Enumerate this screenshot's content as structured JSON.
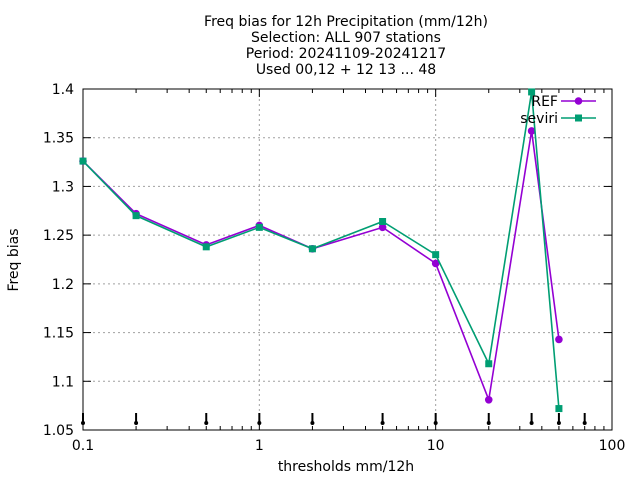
{
  "chart_data": {
    "type": "line",
    "title_lines": [
      "Freq bias  for 12h Precipitation (mm/12h)",
      "Selection: ALL    907 stations",
      "Period: 20241109-20241217",
      "Used 00,12 + 12 13 ... 48"
    ],
    "xlabel": "thresholds mm/12h",
    "ylabel": "Freq bias",
    "x_scale": "log",
    "xlim": [
      0.1,
      100
    ],
    "ylim": [
      1.05,
      1.4
    ],
    "x_ticks": [
      0.1,
      1,
      10,
      100
    ],
    "x_tick_labels": [
      "0.1",
      "1",
      "10",
      "100"
    ],
    "y_ticks": [
      1.05,
      1.1,
      1.15,
      1.2,
      1.25,
      1.3,
      1.35,
      1.4
    ],
    "y_tick_labels": [
      "1.05",
      "1.1",
      "1.15",
      "1.2",
      "1.25",
      "1.3",
      "1.35",
      "1.4"
    ],
    "grid": true,
    "legend_position": "top-right",
    "x": [
      0.1,
      0.2,
      0.5,
      1,
      2,
      5,
      10,
      20,
      35,
      50
    ],
    "series": [
      {
        "name": "REF",
        "color": "#9400d3",
        "marker": "circle",
        "values": [
          1.326,
          1.272,
          1.24,
          1.26,
          1.236,
          1.258,
          1.221,
          1.081,
          1.357,
          1.143
        ]
      },
      {
        "name": "seviri",
        "color": "#009e73",
        "marker": "square",
        "values": [
          1.326,
          1.27,
          1.238,
          1.258,
          1.236,
          1.264,
          1.23,
          1.118,
          1.397,
          1.072
        ]
      }
    ],
    "threshold_markers_x": [
      0.1,
      0.2,
      0.5,
      1,
      2,
      5,
      10,
      20,
      35,
      50,
      70
    ]
  }
}
